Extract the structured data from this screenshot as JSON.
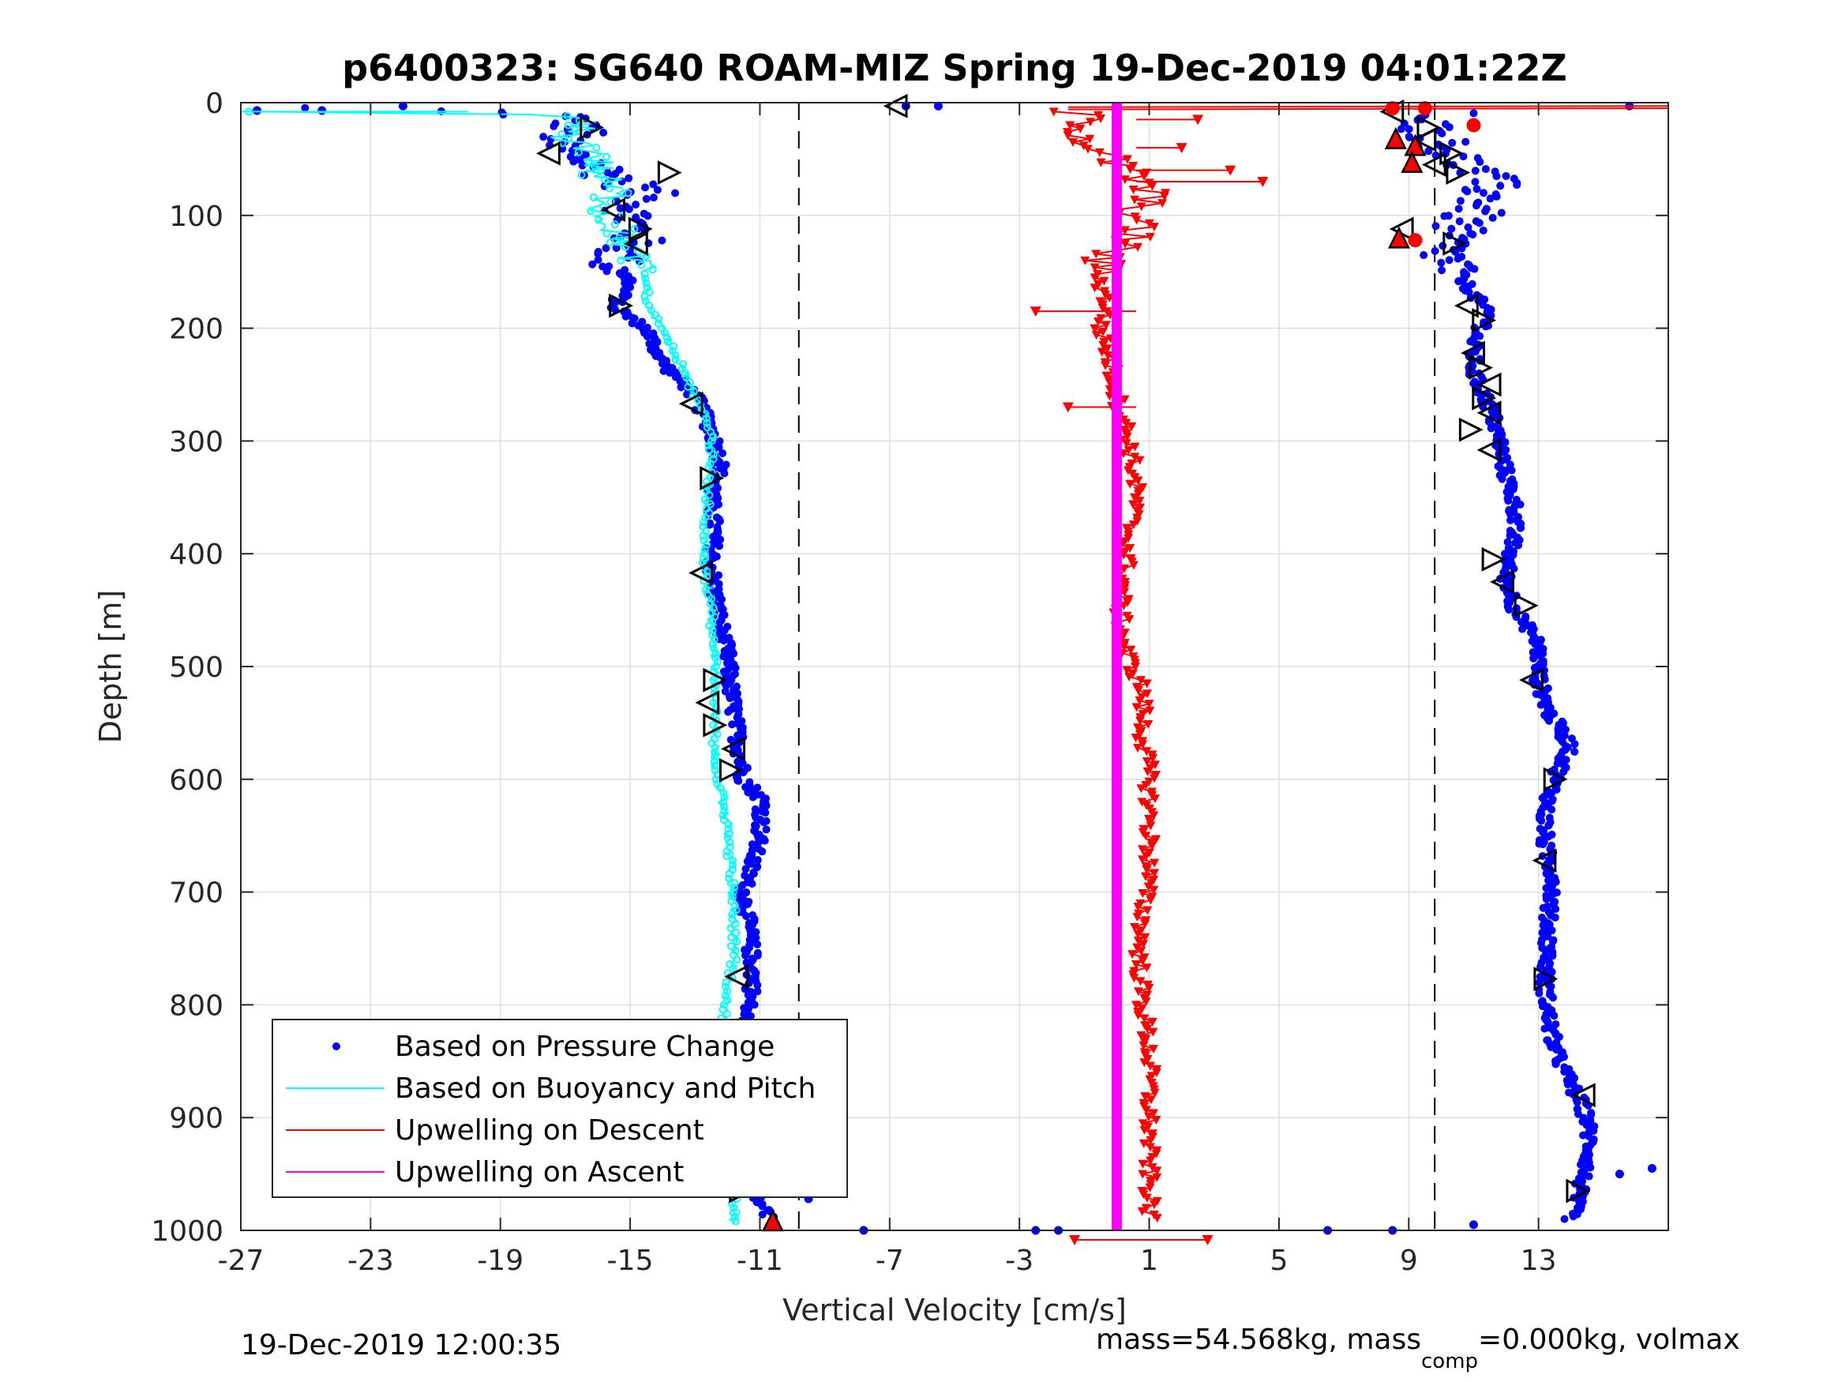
{
  "figure": {
    "title": "p6400323: SG640 ROAM-MIZ Spring 19-Dec-2019 04:01:22Z",
    "footer_left": "19-Dec-2019 12:00:35",
    "footer_right_pre": "mass=54.568kg, mass",
    "footer_right_sub": "comp",
    "footer_right_post": "=0.000kg, volmax"
  },
  "chart_data": {
    "type": "scatter",
    "xlabel": "Vertical Velocity [cm/s]",
    "ylabel": "Depth [m]",
    "xlim": [
      -27,
      17
    ],
    "ylim": [
      1000,
      0
    ],
    "y_reversed": true,
    "grid": true,
    "legend_placement": "bottom-left",
    "xticks": [
      -27,
      -23,
      -19,
      -15,
      -11,
      -7,
      -3,
      1,
      5,
      9,
      13
    ],
    "xtick_labels": [
      "-27",
      "-23",
      "-19",
      "-15",
      "-11",
      "-7",
      "-3",
      "1",
      "5",
      "9",
      "13"
    ],
    "yticks": [
      0,
      100,
      200,
      300,
      400,
      500,
      600,
      700,
      800,
      900,
      1000
    ],
    "ytick_labels": [
      "0",
      "100",
      "200",
      "300",
      "400",
      "500",
      "600",
      "700",
      "800",
      "900",
      "1000"
    ],
    "reference_lines": [
      {
        "x": -9.8,
        "style": "dashed",
        "color": "#000000"
      },
      {
        "x": 9.8,
        "style": "dashed",
        "color": "#000000"
      }
    ],
    "series": [
      {
        "name": "Based on Pressure Change",
        "color": "#0000ff",
        "marker": "dot",
        "profiles": [
          {
            "phase": "descent",
            "points": [
              [
                -25.3,
                5
              ],
              [
                -20,
                7
              ],
              [
                -17,
                12
              ],
              [
                -16.5,
                25
              ],
              [
                -17.5,
                35
              ],
              [
                -16.5,
                50
              ],
              [
                -15.5,
                65
              ],
              [
                -14.5,
                80
              ],
              [
                -15,
                100
              ],
              [
                -14.8,
                120
              ],
              [
                -15.5,
                140
              ],
              [
                -15,
                160
              ],
              [
                -15.5,
                180
              ],
              [
                -14.5,
                200
              ],
              [
                -14,
                230
              ],
              [
                -13,
                260
              ],
              [
                -12.5,
                290
              ],
              [
                -12.2,
                320
              ],
              [
                -12.5,
                350
              ],
              [
                -12.4,
                380
              ],
              [
                -12.5,
                410
              ],
              [
                -12.3,
                450
              ],
              [
                -12,
                490
              ],
              [
                -11.9,
                520
              ],
              [
                -11.7,
                560
              ],
              [
                -11.5,
                600
              ],
              [
                -10.9,
                620
              ],
              [
                -11,
                650
              ],
              [
                -11.5,
                700
              ],
              [
                -11.3,
                740
              ],
              [
                -11.2,
                780
              ],
              [
                -11.5,
                820
              ],
              [
                -11.3,
                860
              ],
              [
                -11.1,
                900
              ],
              [
                -11.1,
                940
              ],
              [
                -11.1,
                970
              ],
              [
                -10.7,
                990
              ]
            ]
          },
          {
            "phase": "ascent",
            "points": [
              [
                10.5,
                10
              ],
              [
                9.5,
                20
              ],
              [
                10,
                35
              ],
              [
                10.5,
                50
              ],
              [
                11.5,
                70
              ],
              [
                11.3,
                90
              ],
              [
                10.5,
                110
              ],
              [
                10,
                130
              ],
              [
                10.5,
                150
              ],
              [
                11,
                170
              ],
              [
                11.5,
                190
              ],
              [
                11,
                210
              ],
              [
                11,
                240
              ],
              [
                11.5,
                270
              ],
              [
                11.8,
                300
              ],
              [
                12,
                330
              ],
              [
                12.3,
                360
              ],
              [
                12.2,
                390
              ],
              [
                12,
                420
              ],
              [
                12.3,
                450
              ],
              [
                13,
                480
              ],
              [
                13,
                510
              ],
              [
                13.3,
                540
              ],
              [
                14,
                570
              ],
              [
                13.5,
                600
              ],
              [
                13.2,
                630
              ],
              [
                13.2,
                660
              ],
              [
                13.5,
                690
              ],
              [
                13.3,
                720
              ],
              [
                13.3,
                750
              ],
              [
                13.2,
                780
              ],
              [
                13.3,
                810
              ],
              [
                13.5,
                840
              ],
              [
                14,
                870
              ],
              [
                14.5,
                900
              ],
              [
                14.6,
                930
              ],
              [
                14.3,
                960
              ],
              [
                14,
                990
              ]
            ]
          }
        ],
        "outliers": [
          [
            -26.5,
            7
          ],
          [
            -24.5,
            7
          ],
          [
            -22,
            3
          ],
          [
            -9.5,
            972
          ],
          [
            -7.8,
            1000
          ],
          [
            -6.5,
            3
          ],
          [
            -5.5,
            3
          ],
          [
            -2.5,
            1000
          ],
          [
            -1.8,
            1000
          ],
          [
            6.5,
            1000
          ],
          [
            8.5,
            1000
          ],
          [
            16.5,
            945
          ],
          [
            15.5,
            950
          ],
          [
            15.8,
            3
          ],
          [
            11,
            995
          ]
        ]
      },
      {
        "name": "Based on Buoyancy and Pitch",
        "color": "#00ffff",
        "marker": "circle-line",
        "points": [
          [
            -27,
            8
          ],
          [
            -20,
            8
          ],
          [
            -16.8,
            12
          ],
          [
            -16.5,
            20
          ],
          [
            -17,
            30
          ],
          [
            -16,
            45
          ],
          [
            -16,
            60
          ],
          [
            -15.5,
            80
          ],
          [
            -15.8,
            100
          ],
          [
            -15.2,
            120
          ],
          [
            -14.8,
            140
          ],
          [
            -14.5,
            160
          ],
          [
            -14.5,
            180
          ],
          [
            -14,
            200
          ],
          [
            -13.5,
            230
          ],
          [
            -13,
            260
          ],
          [
            -12.5,
            290
          ],
          [
            -12.5,
            320
          ],
          [
            -12.6,
            350
          ],
          [
            -12.7,
            380
          ],
          [
            -12.7,
            410
          ],
          [
            -12.5,
            450
          ],
          [
            -12.4,
            490
          ],
          [
            -12.4,
            520
          ],
          [
            -12.4,
            560
          ],
          [
            -12.3,
            600
          ],
          [
            -12,
            640
          ],
          [
            -11.9,
            680
          ],
          [
            -11.8,
            720
          ],
          [
            -11.8,
            760
          ],
          [
            -12.1,
            800
          ],
          [
            -12.1,
            840
          ],
          [
            -12,
            880
          ],
          [
            -11.9,
            920
          ],
          [
            -11.8,
            960
          ],
          [
            -11.8,
            995
          ]
        ]
      },
      {
        "name": "Upwelling on Descent",
        "color": "#ff0000",
        "marker": "triangle-down",
        "points": [
          [
            -1.5,
            8
          ],
          [
            -0.8,
            15
          ],
          [
            -1,
            30
          ],
          [
            -0.5,
            45
          ],
          [
            0.5,
            65
          ],
          [
            1,
            80
          ],
          [
            0.5,
            100
          ],
          [
            0.5,
            120
          ],
          [
            -0.5,
            140
          ],
          [
            -0.5,
            160
          ],
          [
            -0.3,
            180
          ],
          [
            -0.5,
            200
          ],
          [
            -0.2,
            230
          ],
          [
            0,
            260
          ],
          [
            0.3,
            290
          ],
          [
            0.5,
            320
          ],
          [
            0.6,
            350
          ],
          [
            0.4,
            380
          ],
          [
            0.3,
            410
          ],
          [
            0.1,
            450
          ],
          [
            0.3,
            490
          ],
          [
            0.8,
            520
          ],
          [
            0.8,
            560
          ],
          [
            1,
            600
          ],
          [
            1,
            640
          ],
          [
            1,
            680
          ],
          [
            0.8,
            720
          ],
          [
            0.7,
            760
          ],
          [
            0.8,
            800
          ],
          [
            1,
            840
          ],
          [
            1,
            880
          ],
          [
            1,
            920
          ],
          [
            1,
            960
          ],
          [
            1,
            990
          ]
        ],
        "excursions": [
          [
            3.5,
            60
          ],
          [
            4.5,
            70
          ],
          [
            -2.5,
            185
          ],
          [
            -1.5,
            270
          ],
          [
            -1.3,
            1020
          ],
          [
            2.8,
            1020
          ],
          [
            2.5,
            15
          ],
          [
            2,
            40
          ]
        ]
      },
      {
        "name": "Upwelling on Ascent",
        "color": "#ff00ff",
        "marker": "thick-line",
        "points": [
          [
            0,
            0
          ],
          [
            0,
            1000
          ]
        ]
      }
    ],
    "apogee_markers": {
      "color": "#000000",
      "descent": [
        [
          -16.2,
          22
        ],
        [
          -17.5,
          45
        ],
        [
          -13.8,
          62
        ],
        [
          -15.5,
          95
        ],
        [
          -14.7,
          112
        ],
        [
          -14.8,
          125
        ],
        [
          -15.3,
          180
        ],
        [
          -13.1,
          267
        ],
        [
          -12.5,
          333
        ],
        [
          -12.8,
          417
        ],
        [
          -12.4,
          512
        ],
        [
          -12.6,
          532
        ],
        [
          -12.4,
          552
        ],
        [
          -11.8,
          573
        ],
        [
          -11.9,
          592
        ],
        [
          -11.7,
          775
        ],
        [
          -11.6,
          965
        ]
      ],
      "ascent": [
        [
          8.5,
          8
        ],
        [
          9.6,
          22
        ],
        [
          9.5,
          33
        ],
        [
          10.3,
          45
        ],
        [
          9.8,
          55
        ],
        [
          10.5,
          62
        ],
        [
          8.8,
          112
        ],
        [
          10.4,
          125
        ],
        [
          10.8,
          180
        ],
        [
          11.3,
          193
        ],
        [
          11,
          222
        ],
        [
          11.2,
          235
        ],
        [
          11.5,
          250
        ],
        [
          11.3,
          262
        ],
        [
          11.5,
          275
        ],
        [
          10.9,
          290
        ],
        [
          11.5,
          308
        ],
        [
          11.6,
          405
        ],
        [
          11.9,
          425
        ],
        [
          12.6,
          446
        ],
        [
          12.8,
          512
        ],
        [
          13.5,
          600
        ],
        [
          13.2,
          672
        ],
        [
          13.2,
          777
        ],
        [
          14.4,
          880
        ],
        [
          14.2,
          965
        ],
        [
          -6.8,
          3
        ]
      ]
    },
    "red_markers": {
      "color": "#ff0000",
      "triangles": [
        [
          8.6,
          32
        ],
        [
          9.2,
          38
        ],
        [
          9.1,
          53
        ],
        [
          8.7,
          120
        ],
        [
          -10.6,
          993
        ]
      ],
      "dots": [
        [
          8.5,
          5
        ],
        [
          9.5,
          5
        ],
        [
          11,
          20
        ],
        [
          9.2,
          122
        ]
      ]
    }
  }
}
